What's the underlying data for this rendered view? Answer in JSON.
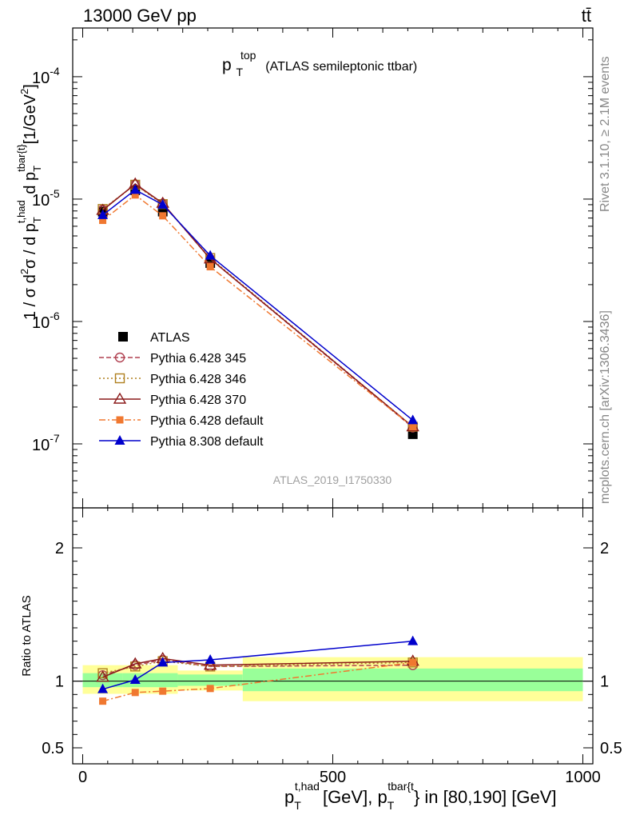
{
  "header": {
    "energy_label": "13000 GeV pp",
    "process_label": "tt̄"
  },
  "side_text": {
    "rivet": "Rivet 3.1.10, ≥ 2.1M events",
    "mcplots": "mcplots.cern.ch [arXiv:1306.3436]"
  },
  "chart_data": [
    {
      "type": "line",
      "title": "p_T^top (ATLAS semileptonic ttbar)",
      "title_main": "p",
      "title_sub": "T",
      "title_sup": "top",
      "title_rest": "(ATLAS semileptonic ttbar)",
      "watermark": "ATLAS_2019_I1750330",
      "ylabel": "1 / σ d²σ / d p_T^t,had d p_T^tbar{t} [1/GeV²]",
      "yscale": "log",
      "ylim": [
        3e-08,
        0.00025
      ],
      "xlim": [
        -20,
        1020
      ],
      "ytick_labels": [
        "10^-7",
        "10^-6",
        "10^-5",
        "10^-4"
      ],
      "legend_position": "lower-left",
      "series": [
        {
          "name": "ATLAS",
          "color": "#000000",
          "marker": "square-filled",
          "line": "none",
          "x": [
            40,
            105,
            160,
            255,
            660
          ],
          "y": [
            7.9e-06,
            1.18e-05,
            7.9e-06,
            3e-06,
            1.2e-07
          ]
        },
        {
          "name": "Pythia 6.428 345",
          "color": "#b04050",
          "marker": "circle-open",
          "line": "dashed",
          "x": [
            40,
            105,
            160,
            255,
            660
          ],
          "y": [
            8.2e-06,
            1.32e-05,
            9.2e-06,
            3.25e-06,
            1.36e-07
          ]
        },
        {
          "name": "Pythia 6.428 346",
          "color": "#b08020",
          "marker": "square-open",
          "line": "dotted",
          "x": [
            40,
            105,
            160,
            255,
            660
          ],
          "y": [
            8.3e-06,
            1.31e-05,
            9.1e-06,
            3.3e-06,
            1.38e-07
          ]
        },
        {
          "name": "Pythia 6.428 370",
          "color": "#8b1a1a",
          "marker": "triangle-open",
          "line": "solid",
          "x": [
            40,
            105,
            160,
            255,
            660
          ],
          "y": [
            8.1e-06,
            1.33e-05,
            9.25e-06,
            3.25e-06,
            1.38e-07
          ]
        },
        {
          "name": "Pythia 6.428 default",
          "color": "#f07830",
          "marker": "square-small",
          "line": "dashdot",
          "x": [
            40,
            105,
            160,
            255,
            660
          ],
          "y": [
            6.7e-06,
            1.08e-05,
            7.3e-06,
            2.8e-06,
            1.38e-07
          ]
        },
        {
          "name": "Pythia 8.308 default",
          "color": "#0000cc",
          "marker": "triangle-filled",
          "line": "solid",
          "x": [
            40,
            105,
            160,
            255,
            660
          ],
          "y": [
            7.4e-06,
            1.19e-05,
            9e-06,
            3.45e-06,
            1.56e-07
          ]
        }
      ]
    },
    {
      "type": "line",
      "ylabel": "Ratio to ATLAS",
      "xlabel": "p_T^t,had [GeV], p_T^tbar{t} in [80,190] [GeV]",
      "xlabel_parts": {
        "p1": "p",
        "sub1": "T",
        "sup1": "t,had",
        "mid": "[GeV], ",
        "p2": "p",
        "sub2": "T",
        "sup2": "tbar{t",
        "tail": "} in [80,190] [GeV]"
      },
      "ylim": [
        0.38,
        2.3
      ],
      "xlim": [
        -20,
        1020
      ],
      "ytick_labels": [
        "0.5",
        "1",
        "2"
      ],
      "xtick_labels": [
        "0",
        "500",
        "1000"
      ],
      "reference_line": 1,
      "bands": [
        {
          "x": [
            0,
            80
          ],
          "green": [
            0.955,
            1.06
          ],
          "yellow": [
            0.905,
            1.12
          ]
        },
        {
          "x": [
            80,
            190
          ],
          "green": [
            0.955,
            1.06
          ],
          "yellow": [
            0.905,
            1.12
          ]
        },
        {
          "x": [
            190,
            320
          ],
          "green": [
            0.965,
            1.05
          ],
          "yellow": [
            0.93,
            1.08
          ]
        },
        {
          "x": [
            320,
            1000
          ],
          "green": [
            0.925,
            1.095
          ],
          "yellow": [
            0.85,
            1.18
          ]
        }
      ],
      "series": [
        {
          "name": "Pythia 6.428 345",
          "color": "#b04050",
          "marker": "circle-open",
          "line": "dashed",
          "x": [
            40,
            105,
            160,
            255,
            660
          ],
          "y": [
            1.045,
            1.12,
            1.16,
            1.11,
            1.12
          ]
        },
        {
          "name": "Pythia 6.428 346",
          "color": "#b08020",
          "marker": "square-open",
          "line": "dotted",
          "x": [
            40,
            105,
            160,
            255,
            660
          ],
          "y": [
            1.06,
            1.11,
            1.15,
            1.11,
            1.14
          ]
        },
        {
          "name": "Pythia 6.428 370",
          "color": "#8b1a1a",
          "marker": "triangle-open",
          "line": "solid",
          "x": [
            40,
            105,
            160,
            255,
            660
          ],
          "y": [
            1.03,
            1.13,
            1.17,
            1.12,
            1.15
          ]
        },
        {
          "name": "Pythia 6.428 default",
          "color": "#f07830",
          "marker": "square-small",
          "line": "dashdot",
          "x": [
            40,
            105,
            160,
            255,
            660
          ],
          "y": [
            0.85,
            0.915,
            0.925,
            0.945,
            1.14
          ]
        },
        {
          "name": "Pythia 8.308 default",
          "color": "#0000cc",
          "marker": "triangle-filled",
          "line": "solid",
          "x": [
            40,
            105,
            160,
            255,
            660
          ],
          "y": [
            0.94,
            1.01,
            1.14,
            1.16,
            1.3
          ]
        }
      ]
    }
  ]
}
